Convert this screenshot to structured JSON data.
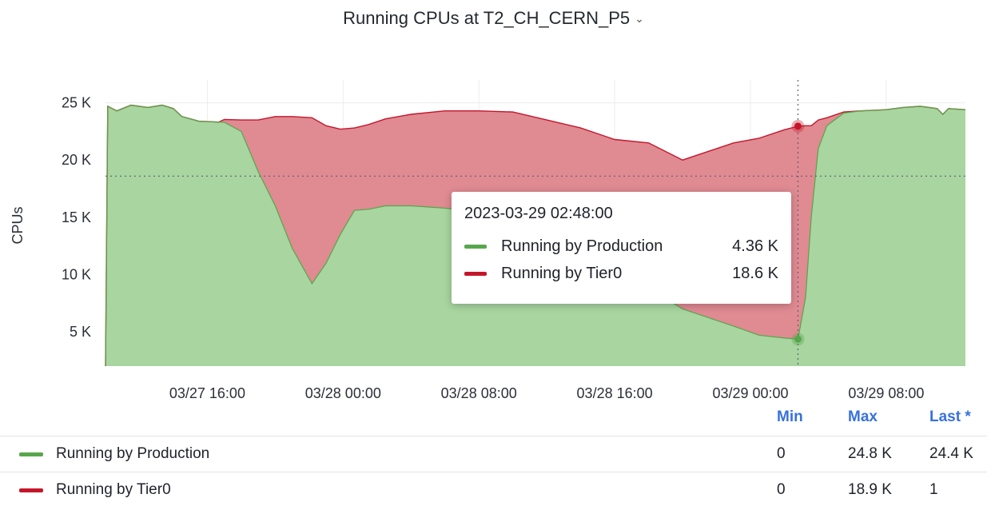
{
  "panel": {
    "title": "Running CPUs at T2_CH_CERN_P5",
    "title_chevron": "⌄"
  },
  "chart_data": {
    "type": "area",
    "stacked": true,
    "ylabel": "CPUs",
    "ylim": [
      2000,
      27000
    ],
    "yticks": [
      {
        "value": 5000,
        "label": "5 K"
      },
      {
        "value": 10000,
        "label": "10 K"
      },
      {
        "value": 15000,
        "label": "15 K"
      },
      {
        "value": 20000,
        "label": "20 K"
      },
      {
        "value": 25000,
        "label": "25 K"
      }
    ],
    "x_start": "2023-03-27 10:00",
    "x_end": "2023-03-29 12:40",
    "xticks": [
      {
        "time": "2023-03-27 16:00",
        "label": "03/27 16:00"
      },
      {
        "time": "2023-03-28 00:00",
        "label": "03/28 00:00"
      },
      {
        "time": "2023-03-28 08:00",
        "label": "03/28 08:00"
      },
      {
        "time": "2023-03-28 16:00",
        "label": "03/28 16:00"
      },
      {
        "time": "2023-03-29 00:00",
        "label": "03/29 00:00"
      },
      {
        "time": "2023-03-29 08:00",
        "label": "03/29 08:00"
      }
    ],
    "series": [
      {
        "name": "Running by Production",
        "color": "#56a64b",
        "fill": "#a8d5a0",
        "points": [
          [
            "2023-03-27 10:00",
            2000
          ],
          [
            "2023-03-27 10:08",
            24700
          ],
          [
            "2023-03-27 10:40",
            24300
          ],
          [
            "2023-03-27 11:30",
            24800
          ],
          [
            "2023-03-27 12:30",
            24600
          ],
          [
            "2023-03-27 13:20",
            24800
          ],
          [
            "2023-03-27 14:00",
            24500
          ],
          [
            "2023-03-27 14:30",
            23800
          ],
          [
            "2023-03-27 15:30",
            23400
          ],
          [
            "2023-03-27 17:00",
            23300
          ],
          [
            "2023-03-27 18:00",
            22500
          ],
          [
            "2023-03-27 19:00",
            19000
          ],
          [
            "2023-03-27 20:00",
            16000
          ],
          [
            "2023-03-27 21:00",
            12300
          ],
          [
            "2023-03-27 22:10",
            9200
          ],
          [
            "2023-03-27 23:00",
            11000
          ],
          [
            "2023-03-27 23:50",
            13500
          ],
          [
            "2023-03-28 00:40",
            15600
          ],
          [
            "2023-03-28 01:30",
            15700
          ],
          [
            "2023-03-28 02:30",
            16000
          ],
          [
            "2023-03-28 04:00",
            16000
          ],
          [
            "2023-03-28 06:00",
            15800
          ],
          [
            "2023-03-28 08:00",
            15500
          ],
          [
            "2023-03-28 10:00",
            14500
          ],
          [
            "2023-03-28 12:00",
            13500
          ],
          [
            "2023-03-28 14:00",
            12000
          ],
          [
            "2023-03-28 16:00",
            10500
          ],
          [
            "2023-03-28 18:00",
            8800
          ],
          [
            "2023-03-28 20:00",
            7000
          ],
          [
            "2023-03-28 21:00",
            6500
          ],
          [
            "2023-03-28 23:00",
            5500
          ],
          [
            "2023-03-29 00:30",
            4700
          ],
          [
            "2023-03-29 02:00",
            4450
          ],
          [
            "2023-03-29 02:48",
            4360
          ],
          [
            "2023-03-29 03:15",
            8000
          ],
          [
            "2023-03-29 03:35",
            15000
          ],
          [
            "2023-03-29 04:00",
            21000
          ],
          [
            "2023-03-29 04:30",
            23000
          ],
          [
            "2023-03-29 05:30",
            24100
          ],
          [
            "2023-03-29 06:30",
            24300
          ],
          [
            "2023-03-29 08:00",
            24400
          ],
          [
            "2023-03-29 09:00",
            24600
          ],
          [
            "2023-03-29 10:00",
            24700
          ],
          [
            "2023-03-29 11:00",
            24500
          ],
          [
            "2023-03-29 11:20",
            24000
          ],
          [
            "2023-03-29 11:40",
            24500
          ],
          [
            "2023-03-29 12:40",
            24400
          ]
        ]
      },
      {
        "name": "Running by Tier0",
        "color": "#c4162a",
        "fill": "#e08a92",
        "points": [
          [
            "2023-03-27 10:00",
            0
          ],
          [
            "2023-03-27 16:40",
            0
          ],
          [
            "2023-03-27 18:00",
            1000
          ],
          [
            "2023-03-27 19:00",
            4500
          ],
          [
            "2023-03-27 20:00",
            7800
          ],
          [
            "2023-03-27 21:00",
            11500
          ],
          [
            "2023-03-27 22:10",
            14500
          ],
          [
            "2023-03-27 23:00",
            12000
          ],
          [
            "2023-03-27 23:50",
            9200
          ],
          [
            "2023-03-28 00:40",
            7200
          ],
          [
            "2023-03-28 01:30",
            7400
          ],
          [
            "2023-03-28 02:30",
            7600
          ],
          [
            "2023-03-28 04:00",
            8000
          ],
          [
            "2023-03-28 06:00",
            8500
          ],
          [
            "2023-03-28 08:00",
            8800
          ],
          [
            "2023-03-28 10:00",
            9700
          ],
          [
            "2023-03-28 12:00",
            10000
          ],
          [
            "2023-03-28 14:00",
            10800
          ],
          [
            "2023-03-28 16:00",
            11300
          ],
          [
            "2023-03-28 18:00",
            12700
          ],
          [
            "2023-03-28 20:00",
            13000
          ],
          [
            "2023-03-28 21:00",
            14000
          ],
          [
            "2023-03-28 23:00",
            16000
          ],
          [
            "2023-03-29 00:30",
            17200
          ],
          [
            "2023-03-29 02:00",
            18200
          ],
          [
            "2023-03-29 02:48",
            18600
          ],
          [
            "2023-03-29 03:15",
            15000
          ],
          [
            "2023-03-29 03:35",
            8000
          ],
          [
            "2023-03-29 04:00",
            2500
          ],
          [
            "2023-03-29 04:30",
            700
          ],
          [
            "2023-03-29 05:30",
            100
          ],
          [
            "2023-03-29 06:30",
            0
          ],
          [
            "2023-03-29 12:40",
            0
          ]
        ]
      }
    ],
    "hover": {
      "time": "2023-03-29 02:48",
      "y_cursor": 18600
    }
  },
  "tooltip": {
    "time": "2023-03-29 02:48:00",
    "rows": [
      {
        "name": "Running by Production",
        "value": "4.36 K",
        "color": "#56a64b"
      },
      {
        "name": "Running by Tier0",
        "value": "18.6 K",
        "color": "#c4162a"
      }
    ]
  },
  "legend": {
    "headers": {
      "min": "Min",
      "max": "Max",
      "last": "Last *"
    },
    "rows": [
      {
        "name": "Running by Production",
        "min": "0",
        "max": "24.8 K",
        "last": "24.4 K",
        "color": "#56a64b"
      },
      {
        "name": "Running by Tier0",
        "min": "0",
        "max": "18.9 K",
        "last": "1",
        "color": "#c4162a"
      }
    ]
  }
}
